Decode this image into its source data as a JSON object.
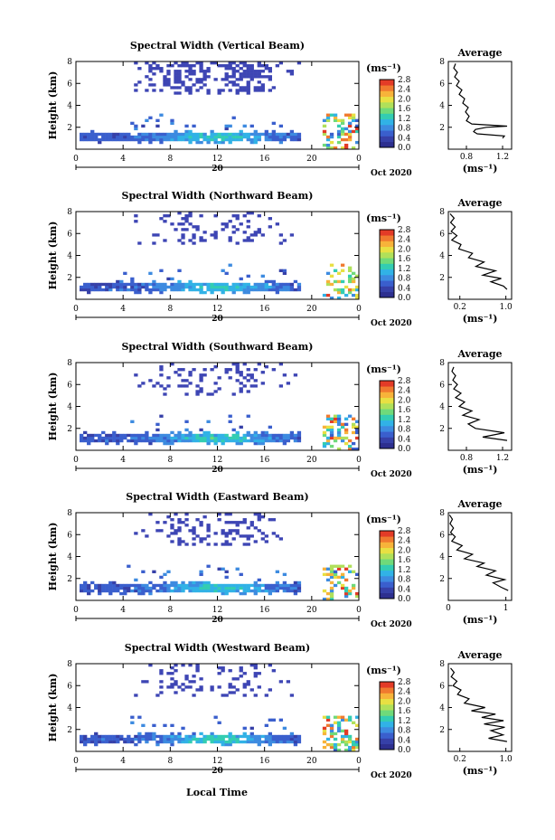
{
  "colors": {
    "scale": [
      "#2d2f8f",
      "#3640a8",
      "#3a5fcd",
      "#3d8be0",
      "#31b2e6",
      "#33cdb2",
      "#6fda7a",
      "#b0e05a",
      "#e8e043",
      "#f7b33a",
      "#f07a2f",
      "#e33b27"
    ],
    "sparse": "#3d45b4",
    "line": "#000000"
  },
  "common": {
    "ylabel": "Height (km)",
    "xticks": [
      "0",
      "4",
      "8",
      "12",
      "16",
      "20",
      "0"
    ],
    "yticks": [
      "2",
      "4",
      "6",
      "8"
    ],
    "date_label": "20",
    "oct_label": "Oct 2020",
    "cb_unit": "(ms⁻¹)",
    "cb_ticks": [
      "0.0",
      "0.4",
      "0.8",
      "1.2",
      "1.6",
      "2.0",
      "2.4",
      "2.8"
    ],
    "avg_title": "Average",
    "avg_unit": "(ms⁻¹)",
    "xlabel_bottom": "Local Time"
  },
  "chart_data": [
    {
      "type": "heatmap",
      "title": "Spectral Width (Vertical Beam)",
      "ylim": [
        0,
        8
      ],
      "xlim": [
        0,
        24
      ],
      "avg_xticks": [
        "0.8",
        "1.2"
      ],
      "avg_xlim": [
        0.6,
        1.3
      ],
      "avg_profile": [
        [
          1.2,
          1.0
        ],
        [
          1.22,
          1.2
        ],
        [
          0.92,
          1.4
        ],
        [
          0.88,
          1.6
        ],
        [
          0.9,
          1.8
        ],
        [
          1.02,
          2.0
        ],
        [
          1.25,
          2.1
        ],
        [
          0.86,
          2.3
        ],
        [
          0.8,
          2.6
        ],
        [
          0.83,
          3.0
        ],
        [
          0.79,
          3.4
        ],
        [
          0.82,
          3.8
        ],
        [
          0.76,
          4.2
        ],
        [
          0.78,
          4.6
        ],
        [
          0.72,
          5.0
        ],
        [
          0.75,
          5.4
        ],
        [
          0.69,
          5.8
        ],
        [
          0.72,
          6.2
        ],
        [
          0.67,
          6.6
        ],
        [
          0.7,
          7.0
        ],
        [
          0.66,
          7.4
        ],
        [
          0.68,
          7.8
        ]
      ]
    },
    {
      "type": "heatmap",
      "title": "Spectral Width (Northward Beam)",
      "ylim": [
        0,
        8
      ],
      "xlim": [
        0,
        24
      ],
      "avg_xticks": [
        "0.2",
        "1.0"
      ],
      "avg_xlim": [
        0.0,
        1.1
      ],
      "avg_profile": [
        [
          1.02,
          0.9
        ],
        [
          0.96,
          1.2
        ],
        [
          0.74,
          1.6
        ],
        [
          0.92,
          1.9
        ],
        [
          0.6,
          2.2
        ],
        [
          0.82,
          2.6
        ],
        [
          0.48,
          3.0
        ],
        [
          0.62,
          3.4
        ],
        [
          0.35,
          3.8
        ],
        [
          0.42,
          4.2
        ],
        [
          0.18,
          4.6
        ],
        [
          0.22,
          5.0
        ],
        [
          0.06,
          5.4
        ],
        [
          0.15,
          5.8
        ],
        [
          0.05,
          6.2
        ],
        [
          0.12,
          6.6
        ],
        [
          0.04,
          7.0
        ],
        [
          0.1,
          7.4
        ],
        [
          0.03,
          7.8
        ]
      ]
    },
    {
      "type": "heatmap",
      "title": "Spectral Width (Southward Beam)",
      "ylim": [
        0,
        8
      ],
      "xlim": [
        0,
        24
      ],
      "avg_xticks": [
        "0.8",
        "1.2"
      ],
      "avg_xlim": [
        0.6,
        1.3
      ],
      "avg_profile": [
        [
          1.25,
          0.9
        ],
        [
          0.98,
          1.2
        ],
        [
          1.22,
          1.6
        ],
        [
          0.9,
          2.0
        ],
        [
          0.82,
          2.4
        ],
        [
          0.94,
          2.8
        ],
        [
          0.76,
          3.2
        ],
        [
          0.86,
          3.6
        ],
        [
          0.72,
          4.0
        ],
        [
          0.78,
          4.4
        ],
        [
          0.68,
          4.8
        ],
        [
          0.74,
          5.2
        ],
        [
          0.66,
          5.6
        ],
        [
          0.7,
          6.0
        ],
        [
          0.65,
          6.4
        ],
        [
          0.68,
          6.8
        ],
        [
          0.64,
          7.2
        ],
        [
          0.66,
          7.6
        ]
      ]
    },
    {
      "type": "heatmap",
      "title": "Spectral Width (Eastward Beam)",
      "ylim": [
        0,
        8
      ],
      "xlim": [
        0,
        24
      ],
      "avg_xticks": [
        "0",
        "1"
      ],
      "avg_xlim": [
        0.0,
        1.1
      ],
      "avg_profile": [
        [
          1.04,
          0.9
        ],
        [
          0.92,
          1.2
        ],
        [
          0.78,
          1.6
        ],
        [
          0.98,
          1.9
        ],
        [
          0.66,
          2.3
        ],
        [
          0.82,
          2.7
        ],
        [
          0.5,
          3.1
        ],
        [
          0.62,
          3.4
        ],
        [
          0.28,
          3.8
        ],
        [
          0.42,
          4.2
        ],
        [
          0.15,
          4.6
        ],
        [
          0.24,
          5.0
        ],
        [
          0.06,
          5.4
        ],
        [
          0.12,
          5.8
        ],
        [
          0.04,
          6.2
        ],
        [
          0.09,
          6.6
        ],
        [
          0.03,
          7.0
        ],
        [
          0.07,
          7.4
        ],
        [
          0.02,
          7.8
        ]
      ]
    },
    {
      "type": "heatmap",
      "title": "Spectral Width (Westward Beam)",
      "ylim": [
        0,
        8
      ],
      "xlim": [
        0,
        24
      ],
      "avg_xticks": [
        "0.2",
        "1.0"
      ],
      "avg_xlim": [
        0.0,
        1.1
      ],
      "avg_profile": [
        [
          1.02,
          0.9
        ],
        [
          0.7,
          1.2
        ],
        [
          0.95,
          1.5
        ],
        [
          0.74,
          1.9
        ],
        [
          0.98,
          2.2
        ],
        [
          0.62,
          2.5
        ],
        [
          0.96,
          2.8
        ],
        [
          0.58,
          3.1
        ],
        [
          0.82,
          3.4
        ],
        [
          0.4,
          3.7
        ],
        [
          0.64,
          4.0
        ],
        [
          0.28,
          4.4
        ],
        [
          0.36,
          4.8
        ],
        [
          0.16,
          5.2
        ],
        [
          0.22,
          5.6
        ],
        [
          0.08,
          6.0
        ],
        [
          0.15,
          6.4
        ],
        [
          0.05,
          6.8
        ],
        [
          0.1,
          7.2
        ],
        [
          0.04,
          7.6
        ]
      ]
    }
  ]
}
